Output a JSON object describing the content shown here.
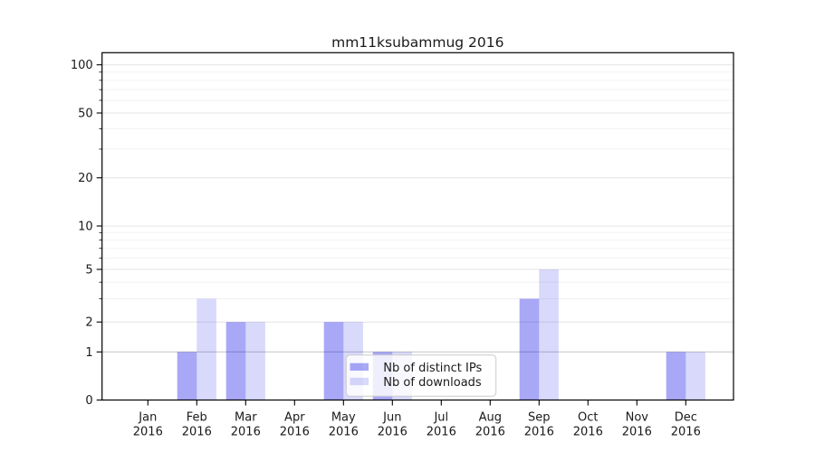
{
  "chart_data": {
    "type": "bar",
    "title": "mm11ksubammug 2016",
    "categories": [
      "Jan",
      "Feb",
      "Mar",
      "Apr",
      "May",
      "Jun",
      "Jul",
      "Aug",
      "Sep",
      "Oct",
      "Nov",
      "Dec"
    ],
    "tick_year": "2016",
    "series": [
      {
        "name": "Nb of distinct IPs",
        "base_color": "#0000e6",
        "alpha": 0.34,
        "rendered_color": "#a9a9f7",
        "values": [
          0,
          1,
          2,
          0,
          2,
          1,
          0,
          0,
          3,
          0,
          0,
          1
        ]
      },
      {
        "name": "Nb of downloads",
        "base_color": "#0000e6",
        "alpha": 0.15,
        "rendered_color": "#dadaf9",
        "values": [
          0,
          3,
          2,
          0,
          2,
          1,
          0,
          0,
          5,
          0,
          0,
          1
        ]
      }
    ],
    "y_ticks": [
      0,
      1,
      2,
      5,
      10,
      20,
      50,
      100
    ],
    "ylim": [
      0,
      100
    ],
    "yscale": "symlog",
    "grid": true,
    "legend": {
      "position": "lower center inside plot"
    }
  }
}
